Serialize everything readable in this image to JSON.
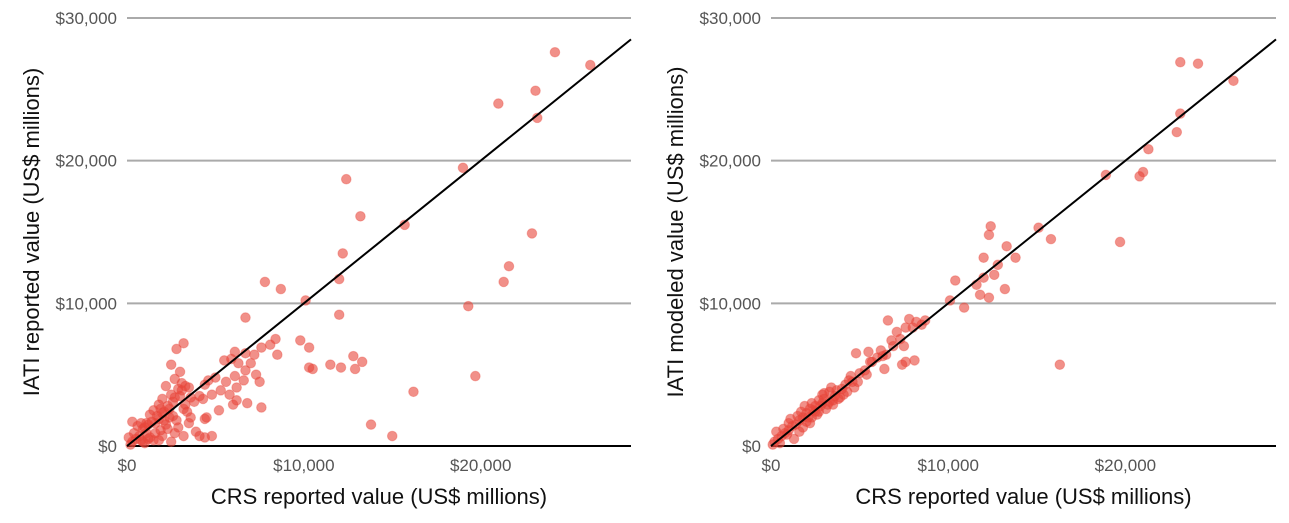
{
  "chart_data": [
    {
      "type": "scatter",
      "xlabel": "CRS reported value (US$ millions)",
      "ylabel": "IATI reported value (US$ millions)",
      "xlim": [
        0,
        28500
      ],
      "ylim": [
        0,
        30000
      ],
      "x_ticks": [
        "$0",
        "$10,000",
        "$20,000"
      ],
      "y_ticks": [
        "$0",
        "$10,000",
        "$20,000",
        "$30,000"
      ],
      "grid": "horizontal",
      "reference_line": "y = x",
      "point_color": "#e8463a",
      "points": [
        [
          24200,
          27600
        ],
        [
          26200,
          26700
        ],
        [
          23100,
          24900
        ],
        [
          21000,
          24000
        ],
        [
          23200,
          23000
        ],
        [
          19000,
          19500
        ],
        [
          12400,
          18700
        ],
        [
          13200,
          16100
        ],
        [
          15700,
          15500
        ],
        [
          22900,
          14900
        ],
        [
          12200,
          13500
        ],
        [
          21600,
          12600
        ],
        [
          21300,
          11500
        ],
        [
          12000,
          11700
        ],
        [
          7800,
          11500
        ],
        [
          8700,
          11000
        ],
        [
          10100,
          10200
        ],
        [
          19300,
          9800
        ],
        [
          12000,
          9200
        ],
        [
          6700,
          9000
        ],
        [
          9800,
          7400
        ],
        [
          10300,
          6900
        ],
        [
          12800,
          6300
        ],
        [
          13300,
          5900
        ],
        [
          11500,
          5700
        ],
        [
          12100,
          5500
        ],
        [
          12900,
          5400
        ],
        [
          10500,
          5400
        ],
        [
          10300,
          5500
        ],
        [
          19700,
          4900
        ],
        [
          16200,
          3800
        ],
        [
          13800,
          1500
        ],
        [
          15000,
          700
        ],
        [
          4800,
          700
        ],
        [
          4400,
          600
        ],
        [
          4100,
          700
        ],
        [
          8400,
          7500
        ],
        [
          8100,
          7100
        ],
        [
          7600,
          6900
        ],
        [
          8500,
          6400
        ],
        [
          7200,
          6400
        ],
        [
          6700,
          6500
        ],
        [
          6100,
          6600
        ],
        [
          5900,
          6100
        ],
        [
          6300,
          5800
        ],
        [
          5500,
          6000
        ],
        [
          7000,
          5800
        ],
        [
          6700,
          5300
        ],
        [
          7300,
          5000
        ],
        [
          6100,
          4900
        ],
        [
          6600,
          4600
        ],
        [
          5600,
          4500
        ],
        [
          6200,
          4100
        ],
        [
          5300,
          3900
        ],
        [
          7500,
          4500
        ],
        [
          5800,
          3600
        ],
        [
          6200,
          3200
        ],
        [
          6800,
          3000
        ],
        [
          6000,
          2900
        ],
        [
          7600,
          2700
        ],
        [
          5200,
          2500
        ],
        [
          4500,
          2000
        ],
        [
          3600,
          2000
        ],
        [
          3200,
          2600
        ],
        [
          4300,
          3300
        ],
        [
          3800,
          3100
        ],
        [
          4400,
          4300
        ],
        [
          4800,
          3600
        ],
        [
          3500,
          4100
        ],
        [
          3100,
          4400
        ],
        [
          2800,
          6800
        ],
        [
          3200,
          7200
        ],
        [
          2500,
          5700
        ],
        [
          3000,
          5200
        ],
        [
          2700,
          4700
        ],
        [
          2200,
          4200
        ],
        [
          2900,
          4000
        ],
        [
          2500,
          3600
        ],
        [
          2000,
          3300
        ],
        [
          2600,
          3100
        ],
        [
          2300,
          2800
        ],
        [
          1800,
          2900
        ],
        [
          1500,
          2500
        ],
        [
          2100,
          2400
        ],
        [
          1300,
          2200
        ],
        [
          2400,
          2000
        ],
        [
          1800,
          1900
        ],
        [
          1600,
          1600
        ],
        [
          2200,
          1500
        ],
        [
          2900,
          1300
        ],
        [
          3500,
          1600
        ],
        [
          2700,
          900
        ],
        [
          3200,
          700
        ],
        [
          2000,
          700
        ],
        [
          1800,
          400
        ],
        [
          2500,
          300
        ],
        [
          1200,
          1500
        ],
        [
          900,
          1200
        ],
        [
          1100,
          900
        ],
        [
          700,
          700
        ],
        [
          500,
          500
        ],
        [
          300,
          300
        ],
        [
          200,
          100
        ],
        [
          100,
          600
        ],
        [
          300,
          1700
        ],
        [
          600,
          1400
        ],
        [
          800,
          400
        ],
        [
          1000,
          200
        ],
        [
          1300,
          600
        ],
        [
          1600,
          900
        ],
        [
          1900,
          1100
        ],
        [
          2300,
          1200
        ],
        [
          2800,
          1800
        ],
        [
          3300,
          2900
        ],
        [
          3000,
          3500
        ],
        [
          3600,
          3400
        ],
        [
          4100,
          3500
        ],
        [
          4600,
          4600
        ],
        [
          5000,
          4800
        ],
        [
          1400,
          1700
        ],
        [
          1100,
          1600
        ],
        [
          800,
          1600
        ],
        [
          1700,
          2100
        ],
        [
          2000,
          2300
        ],
        [
          2400,
          2600
        ],
        [
          2600,
          2100
        ],
        [
          1500,
          400
        ],
        [
          900,
          300
        ],
        [
          400,
          900
        ],
        [
          3900,
          1000
        ],
        [
          1200,
          500
        ],
        [
          4400,
          1900
        ],
        [
          2100,
          1800
        ],
        [
          3400,
          2400
        ],
        [
          1000,
          1300
        ],
        [
          1900,
          2600
        ],
        [
          2700,
          3400
        ],
        [
          3100,
          3900
        ],
        [
          3300,
          4200
        ]
      ]
    },
    {
      "type": "scatter",
      "xlabel": "CRS reported value (US$ millions)",
      "ylabel": "IATI modeled value (US$ millions)",
      "xlim": [
        0,
        28500
      ],
      "ylim": [
        0,
        30000
      ],
      "x_ticks": [
        "$0",
        "$10,000",
        "$20,000"
      ],
      "y_ticks": [
        "$0",
        "$10,000",
        "$20,000",
        "$30,000"
      ],
      "grid": "horizontal",
      "reference_line": "y = x",
      "point_color": "#e8463a",
      "points": [
        [
          23100,
          26900
        ],
        [
          24100,
          26800
        ],
        [
          26100,
          25600
        ],
        [
          23100,
          23300
        ],
        [
          22900,
          22000
        ],
        [
          21300,
          20800
        ],
        [
          21000,
          19200
        ],
        [
          20800,
          18900
        ],
        [
          18900,
          19000
        ],
        [
          12400,
          15400
        ],
        [
          12300,
          14800
        ],
        [
          15100,
          15300
        ],
        [
          15800,
          14500
        ],
        [
          19700,
          14300
        ],
        [
          13300,
          14000
        ],
        [
          12800,
          12700
        ],
        [
          13800,
          13200
        ],
        [
          12000,
          13200
        ],
        [
          12600,
          12000
        ],
        [
          12000,
          11800
        ],
        [
          11600,
          11300
        ],
        [
          13200,
          11000
        ],
        [
          10400,
          11600
        ],
        [
          11800,
          10600
        ],
        [
          12300,
          10400
        ],
        [
          10100,
          10200
        ],
        [
          10900,
          9700
        ],
        [
          8700,
          8800
        ],
        [
          8200,
          8700
        ],
        [
          7800,
          8900
        ],
        [
          7600,
          8300
        ],
        [
          7100,
          8000
        ],
        [
          6600,
          8800
        ],
        [
          6800,
          7400
        ],
        [
          7500,
          7000
        ],
        [
          16300,
          5700
        ],
        [
          7600,
          5900
        ],
        [
          8100,
          6000
        ],
        [
          7400,
          5700
        ],
        [
          6400,
          5400
        ],
        [
          6500,
          6400
        ],
        [
          6000,
          6200
        ],
        [
          5700,
          5900
        ],
        [
          6200,
          6700
        ],
        [
          5500,
          6600
        ],
        [
          4800,
          6500
        ],
        [
          5300,
          5300
        ],
        [
          4500,
          4900
        ],
        [
          4600,
          4500
        ],
        [
          4200,
          4300
        ],
        [
          3700,
          3900
        ],
        [
          4100,
          3600
        ],
        [
          4700,
          4100
        ],
        [
          3900,
          3400
        ],
        [
          3500,
          3200
        ],
        [
          3300,
          3800
        ],
        [
          3000,
          3700
        ],
        [
          2700,
          3200
        ],
        [
          2900,
          3000
        ],
        [
          2500,
          2800
        ],
        [
          2200,
          2600
        ],
        [
          2000,
          2300
        ],
        [
          2300,
          2000
        ],
        [
          1800,
          2000
        ],
        [
          1600,
          1800
        ],
        [
          1400,
          1500
        ],
        [
          1200,
          1400
        ],
        [
          1000,
          1100
        ],
        [
          800,
          900
        ],
        [
          600,
          700
        ],
        [
          400,
          500
        ],
        [
          200,
          300
        ],
        [
          100,
          100
        ],
        [
          300,
          1000
        ],
        [
          1800,
          1300
        ],
        [
          2000,
          1700
        ],
        [
          2600,
          2200
        ],
        [
          3100,
          2600
        ],
        [
          3500,
          2900
        ],
        [
          3800,
          3300
        ],
        [
          4300,
          3800
        ],
        [
          4900,
          4500
        ],
        [
          5400,
          5000
        ],
        [
          1500,
          2100
        ],
        [
          2800,
          2800
        ],
        [
          3300,
          3100
        ],
        [
          2500,
          2400
        ],
        [
          1000,
          1600
        ],
        [
          1900,
          2800
        ],
        [
          700,
          1200
        ],
        [
          1300,
          500
        ],
        [
          500,
          200
        ],
        [
          2100,
          2000
        ],
        [
          2400,
          2500
        ],
        [
          3000,
          3300
        ],
        [
          3600,
          3500
        ],
        [
          4000,
          4000
        ],
        [
          900,
          800
        ],
        [
          1600,
          1000
        ],
        [
          2200,
          1600
        ],
        [
          2700,
          2400
        ],
        [
          3200,
          2900
        ],
        [
          1100,
          1900
        ],
        [
          1700,
          2400
        ],
        [
          2300,
          3000
        ],
        [
          2900,
          3600
        ],
        [
          3400,
          4100
        ],
        [
          4400,
          4600
        ],
        [
          5000,
          5100
        ],
        [
          5600,
          5900
        ],
        [
          6300,
          6300
        ],
        [
          6900,
          7000
        ],
        [
          7300,
          7500
        ],
        [
          8000,
          8300
        ],
        [
          8500,
          8500
        ]
      ]
    }
  ]
}
